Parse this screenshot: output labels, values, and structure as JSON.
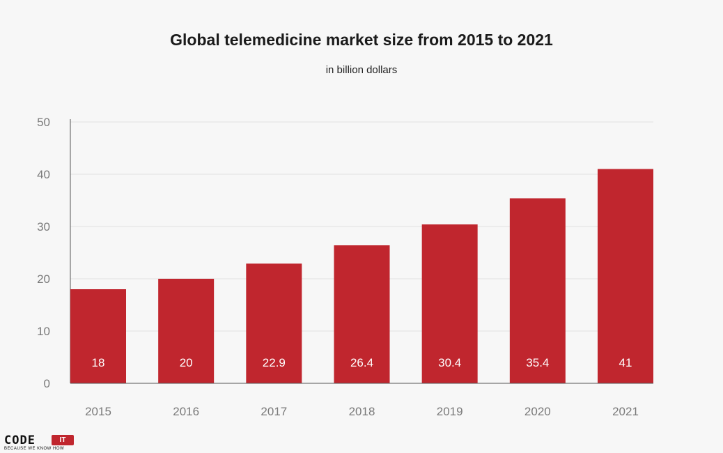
{
  "logo": {
    "word": "CODE",
    "badge": "IT",
    "tagline": "BECAUSE WE KNOW HOW"
  },
  "chart_data": {
    "type": "bar",
    "title": "Global telemedicine market size from 2015 to 2021",
    "subtitle": "in billion dollars",
    "categories": [
      "2015",
      "2016",
      "2017",
      "2018",
      "2019",
      "2020",
      "2021"
    ],
    "values": [
      18,
      20,
      22.9,
      26.4,
      30.4,
      35.4,
      41
    ],
    "data_labels": [
      "18",
      "20",
      "22.9",
      "26.4",
      "30.4",
      "35.4",
      "41"
    ],
    "ylim": [
      0,
      50
    ],
    "yticks": [
      0,
      10,
      20,
      30,
      40,
      50
    ],
    "xlabel": "",
    "ylabel": "",
    "grid": true,
    "legend": "none",
    "colors": {
      "bar": "#c0262e",
      "data_label": "#ffffff",
      "grid": "#e2e2e2",
      "axis": "#555555",
      "tick_label": "#7a7a7a"
    }
  }
}
